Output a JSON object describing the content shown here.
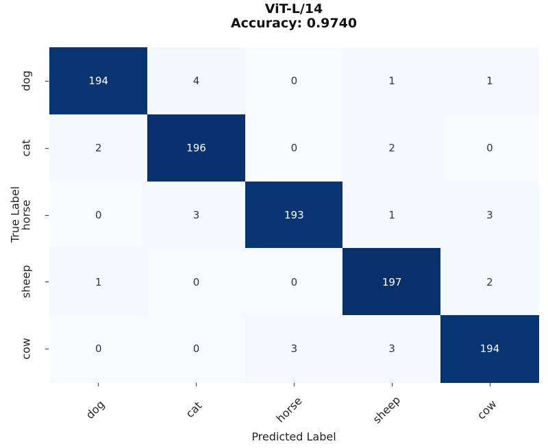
{
  "chart_data": {
    "type": "heatmap",
    "title": "ViT-L/14",
    "subtitle": "Accuracy: 0.9740",
    "xlabel": "Predicted Label",
    "ylabel": "True Label",
    "x_categories": [
      "dog",
      "cat",
      "horse",
      "sheep",
      "cow"
    ],
    "y_categories": [
      "dog",
      "cat",
      "horse",
      "sheep",
      "cow"
    ],
    "values": [
      [
        194,
        4,
        0,
        1,
        1
      ],
      [
        2,
        196,
        0,
        2,
        0
      ],
      [
        0,
        3,
        193,
        1,
        3
      ],
      [
        1,
        0,
        0,
        197,
        2
      ],
      [
        0,
        0,
        3,
        3,
        194
      ]
    ],
    "colormap": "Blues",
    "vmin": 0,
    "vmax": 197,
    "colorbar": false,
    "legend": "none"
  },
  "colors": {
    "high": "#08306b",
    "low": "#f7fbff",
    "text_dark": "#333333",
    "text_light": "#ffffff"
  }
}
